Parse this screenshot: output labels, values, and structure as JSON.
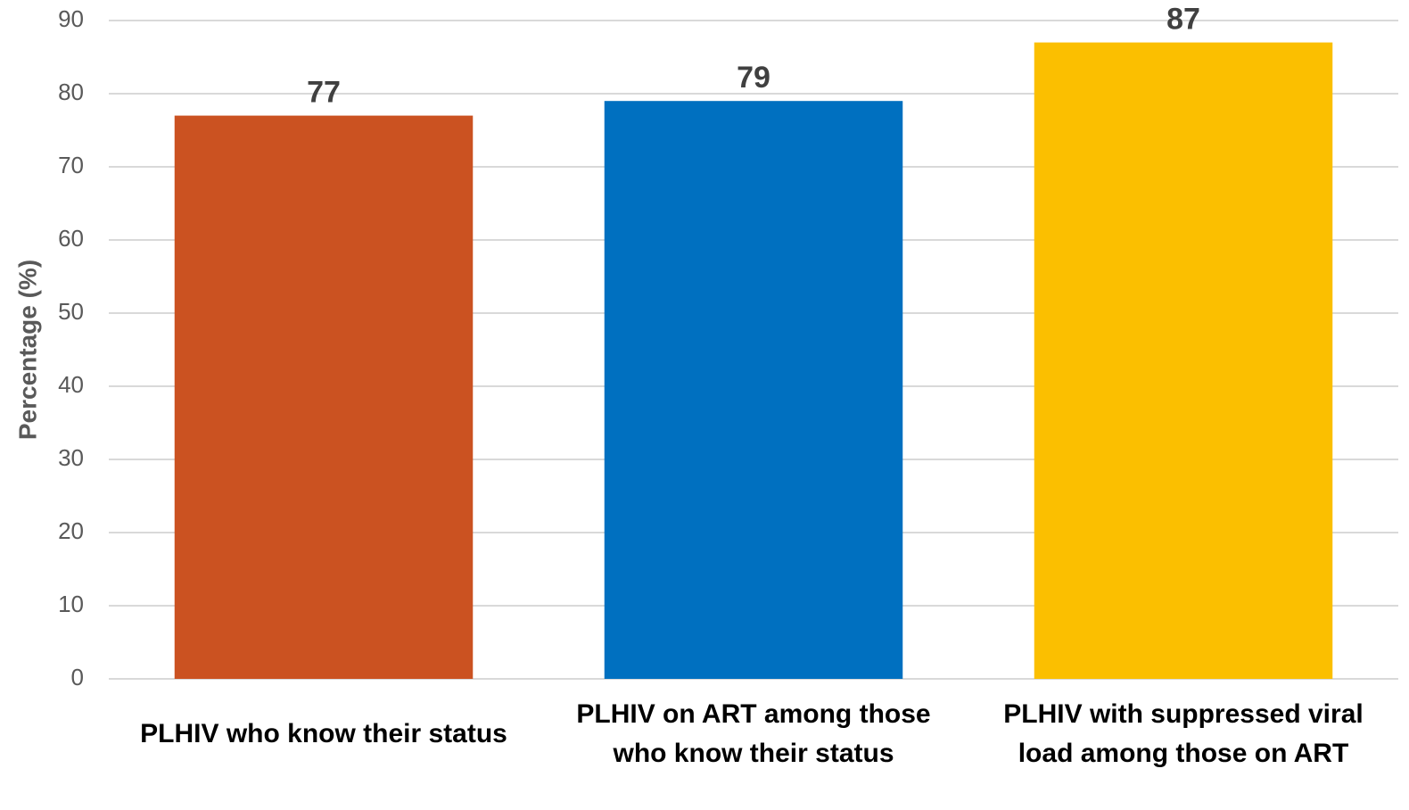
{
  "chart_data": {
    "type": "bar",
    "y_label": "Percentage (%)",
    "categories": [
      "PLHIV who know their status",
      "PLHIV on ART among those who know their status",
      "PLHIV with suppressed viral load among those on ART"
    ],
    "values": [
      77,
      79,
      87
    ],
    "colors": [
      "#cb5221",
      "#0070c0",
      "#fbbf00"
    ],
    "ylim": [
      0,
      90
    ],
    "yticks": [
      0,
      10,
      20,
      30,
      40,
      50,
      60,
      70,
      80,
      90
    ],
    "grid": true
  }
}
